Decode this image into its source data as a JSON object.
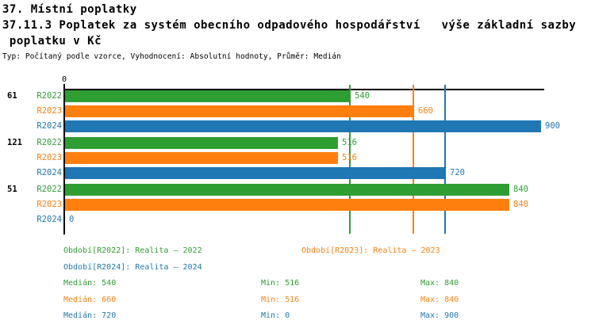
{
  "header": {
    "title": "37. Místní poplatky",
    "subtitle_line1": "37.11.3 Poplatek za systém obecního odpadového hospodářství   výše základní sazby",
    "subtitle_line2": " poplatku v Kč",
    "meta": "Typ: Počítaný podle vzorce, Vyhodnocení: Absolutní hodnoty, Průměr: Medián"
  },
  "chart_data": {
    "type": "bar",
    "orientation": "horizontal",
    "x_origin_label": "0",
    "xlim": [
      0,
      907
    ],
    "grid": false,
    "series": [
      "R2022",
      "R2023",
      "R2024"
    ],
    "series_colors": {
      "R2022": "#2E9E33",
      "R2023": "#FF7F0E",
      "R2024": "#1F77B4"
    },
    "groups": [
      {
        "label": "61",
        "values": [
          540,
          660,
          900
        ]
      },
      {
        "label": "121",
        "values": [
          516,
          516,
          720
        ]
      },
      {
        "label": "51",
        "values": [
          840,
          840,
          0
        ]
      }
    ],
    "median_lines": [
      {
        "series": "R2022",
        "value": 540
      },
      {
        "series": "R2023",
        "value": 660
      },
      {
        "series": "R2024",
        "value": 720
      }
    ],
    "stats": {
      "R2022": {
        "median": 540,
        "min": 516,
        "max": 840
      },
      "R2023": {
        "median": 660,
        "min": 516,
        "max": 840
      },
      "R2024": {
        "median": 720,
        "min": 0,
        "max": 900
      }
    }
  },
  "summary": {
    "legend": [
      {
        "text": "Období[R2022]: Realita – 2022",
        "color": "#2E9E33"
      },
      {
        "text": "Období[R2023]: Realita – 2023",
        "color": "#FF7F0E"
      },
      {
        "text": "Období[R2024]: Realita – 2024",
        "color": "#1F77B4"
      }
    ],
    "stats_rows": [
      {
        "median": "Medián: 540",
        "min": "Min: 516",
        "max": "Max: 840",
        "color": "#2E9E33"
      },
      {
        "median": "Medián: 660",
        "min": "Min: 516",
        "max": "Max: 840",
        "color": "#FF7F0E"
      },
      {
        "median": "Medián: 720",
        "min": "Min: 0",
        "max": "Max: 900",
        "color": "#1F77B4"
      }
    ]
  }
}
